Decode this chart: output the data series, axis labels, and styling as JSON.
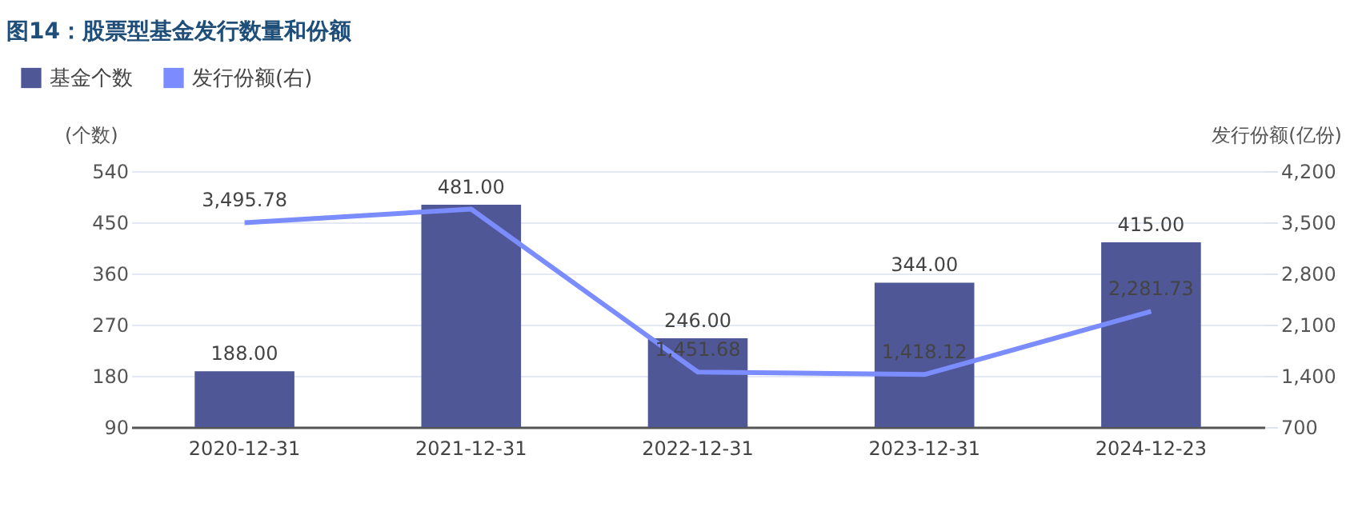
{
  "chart_data": {
    "type": "bar",
    "title": "图14：股票型基金发行数量和份额",
    "categories": [
      "2020-12-31",
      "2021-12-31",
      "2022-12-31",
      "2023-12-31",
      "2024-12-23"
    ],
    "series": [
      {
        "name": "基金个数",
        "color": "#4f5797",
        "values": [
          188,
          481,
          246,
          344,
          415
        ],
        "value_labels": [
          "188.00",
          "481.00",
          "246.00",
          "344.00",
          "415.00"
        ]
      },
      {
        "name": "发行份额(右)",
        "type": "line",
        "axis": "y2",
        "color": "#7b8cff",
        "values": [
          3495.78,
          3680,
          1451.68,
          1418.12,
          2281.73
        ],
        "value_labels": [
          "3,495.78",
          null,
          "1,451.68",
          "1,418.12",
          "2,281.73"
        ]
      }
    ],
    "ylabel": "(个数)",
    "y2label": "发行份额(亿份)",
    "ylim": [
      90,
      540
    ],
    "yticks": [
      90,
      180,
      270,
      360,
      450,
      540
    ],
    "y2lim": [
      700,
      4200
    ],
    "y2ticks": [
      {
        "value": 700,
        "label": "700"
      },
      {
        "value": 1400,
        "label": "1,400"
      },
      {
        "value": 2100,
        "label": "2,100"
      },
      {
        "value": 2800,
        "label": "2,800"
      },
      {
        "value": 3500,
        "label": "3,500"
      },
      {
        "value": 4200,
        "label": "4,200"
      }
    ],
    "grid": "y",
    "legend": "top left"
  }
}
